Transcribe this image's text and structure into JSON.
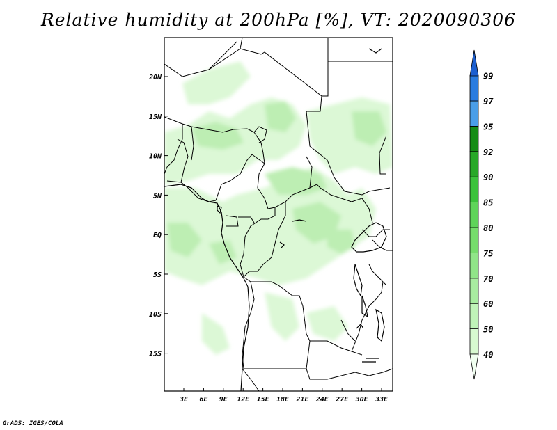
{
  "title": "Relative humidity at 200hPa [%], VT: 2020090306",
  "credit": "GrADS: IGES/COLA",
  "map": {
    "lat_ticks": [
      "20N",
      "15N",
      "10N",
      "5N",
      "EQ",
      "5S",
      "10S",
      "15S"
    ],
    "lon_ticks": [
      "3E",
      "6E",
      "9E",
      "12E",
      "15E",
      "18E",
      "21E",
      "24E",
      "27E",
      "30E",
      "33E"
    ],
    "lon_range": [
      0,
      35
    ],
    "lat_range": [
      -20,
      25
    ]
  },
  "colorbar": {
    "labels": [
      "40",
      "50",
      "60",
      "70",
      "75",
      "80",
      "85",
      "90",
      "92",
      "95",
      "97",
      "99"
    ],
    "colors": [
      "#f0fff0",
      "#d7f9d0",
      "#c0f3b8",
      "#a8eca0",
      "#90e588",
      "#76dc6c",
      "#5fd45a",
      "#3cc23c",
      "#28a828",
      "#168c16",
      "#4a9ee8",
      "#2a7ce0",
      "#1c5fd0"
    ]
  }
}
